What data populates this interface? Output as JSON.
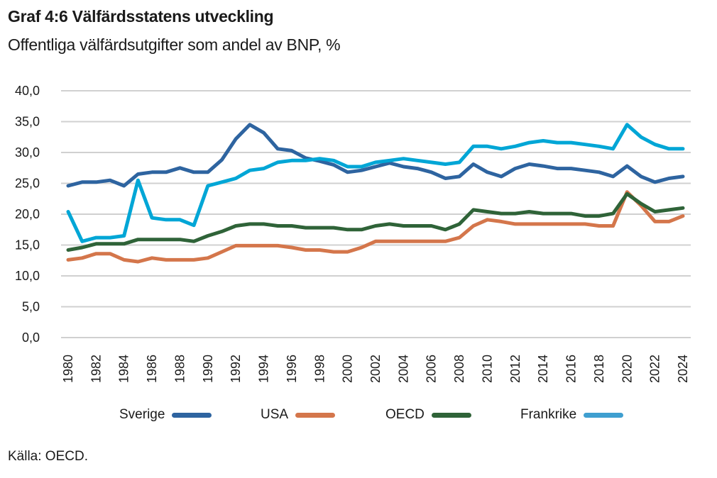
{
  "title": "Graf 4:6 Välfärdsstatens utveckling",
  "subtitle": "Offentliga välfärdsutgifter som andel av BNP, %",
  "source": "Källa: OECD.",
  "chart_data": {
    "type": "line",
    "title": "Graf 4:6 Välfärdsstatens utveckling",
    "subtitle": "Offentliga välfärdsutgifter som andel av BNP, %",
    "xlabel": "",
    "ylabel": "",
    "ylim": [
      0,
      40
    ],
    "yticks": [
      "0,0",
      "5,0",
      "10,0",
      "15,0",
      "20,0",
      "25,0",
      "30,0",
      "35,0",
      "40,0"
    ],
    "ytick_values": [
      0,
      5,
      10,
      15,
      20,
      25,
      30,
      35,
      40
    ],
    "xticks": [
      "1980",
      "1982",
      "1984",
      "1986",
      "1988",
      "1990",
      "1992",
      "1994",
      "1996",
      "1998",
      "2000",
      "2002",
      "2004",
      "2006",
      "2008",
      "2010",
      "2012",
      "2014",
      "2016",
      "2018",
      "2020",
      "2022",
      "2024"
    ],
    "grid": true,
    "legend_position": "bottom",
    "x": [
      1980,
      1981,
      1982,
      1983,
      1984,
      1985,
      1986,
      1987,
      1988,
      1989,
      1990,
      1991,
      1992,
      1993,
      1994,
      1995,
      1996,
      1997,
      1998,
      1999,
      2000,
      2001,
      2002,
      2003,
      2004,
      2005,
      2006,
      2007,
      2008,
      2009,
      2010,
      2011,
      2012,
      2013,
      2014,
      2015,
      2016,
      2017,
      2018,
      2019,
      2020,
      2021,
      2022,
      2023,
      2024
    ],
    "series": [
      {
        "name": "Sverige",
        "color": "#2e64a0",
        "values": [
          24.6,
          25.2,
          25.2,
          25.5,
          24.6,
          26.5,
          26.8,
          26.8,
          27.5,
          26.8,
          26.8,
          28.8,
          32.2,
          34.5,
          33.2,
          30.6,
          30.3,
          29.1,
          28.6,
          28.0,
          26.8,
          27.1,
          27.7,
          28.3,
          27.7,
          27.4,
          26.8,
          25.8,
          26.1,
          28.1,
          26.8,
          26.1,
          27.4,
          28.1,
          27.8,
          27.4,
          27.4,
          27.1,
          26.8,
          26.1,
          27.8,
          26.1,
          25.2,
          25.8,
          26.1
        ]
      },
      {
        "name": "USA",
        "color": "#d4764b",
        "values": [
          12.6,
          12.9,
          13.6,
          13.6,
          12.6,
          12.3,
          12.9,
          12.6,
          12.6,
          12.6,
          12.9,
          13.9,
          14.9,
          14.9,
          14.9,
          14.9,
          14.6,
          14.2,
          14.2,
          13.9,
          13.9,
          14.6,
          15.6,
          15.6,
          15.6,
          15.6,
          15.6,
          15.6,
          16.2,
          18.1,
          19.1,
          18.8,
          18.4,
          18.4,
          18.4,
          18.4,
          18.4,
          18.4,
          18.1,
          18.1,
          23.6,
          21.4,
          18.8,
          18.8,
          19.7
        ]
      },
      {
        "name": "OECD",
        "color": "#2f6338",
        "values": [
          14.2,
          14.6,
          15.2,
          15.2,
          15.2,
          15.9,
          15.9,
          15.9,
          15.9,
          15.6,
          16.5,
          17.2,
          18.1,
          18.4,
          18.4,
          18.1,
          18.1,
          17.8,
          17.8,
          17.8,
          17.5,
          17.5,
          18.1,
          18.4,
          18.1,
          18.1,
          18.1,
          17.5,
          18.4,
          20.7,
          20.4,
          20.1,
          20.1,
          20.4,
          20.1,
          20.1,
          20.1,
          19.7,
          19.7,
          20.1,
          23.3,
          21.7,
          20.4,
          20.7,
          21.0
        ]
      },
      {
        "name": "Frankrike",
        "color": "#00a6d6",
        "values": [
          20.4,
          15.6,
          16.2,
          16.2,
          16.5,
          25.5,
          19.4,
          19.1,
          19.1,
          18.2,
          24.6,
          25.2,
          25.8,
          27.1,
          27.4,
          28.4,
          28.7,
          28.7,
          29.0,
          28.7,
          27.7,
          27.7,
          28.4,
          28.7,
          29.0,
          28.7,
          28.4,
          28.1,
          28.4,
          31.0,
          31.0,
          30.6,
          31.0,
          31.6,
          31.9,
          31.6,
          31.6,
          31.3,
          31.0,
          30.6,
          34.5,
          32.5,
          31.3,
          30.6,
          30.6
        ]
      }
    ]
  },
  "legend": [
    {
      "label": "Sverige",
      "color": "#2e64a0"
    },
    {
      "label": "USA",
      "color": "#d4764b"
    },
    {
      "label": "OECD",
      "color": "#2f6338"
    },
    {
      "label": "Frankrike",
      "color": "#3f9fd0"
    }
  ]
}
